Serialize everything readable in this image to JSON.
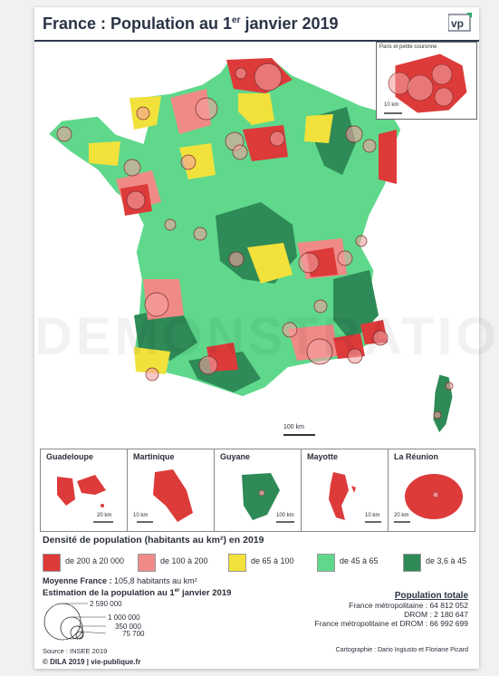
{
  "title": "France : Population au 1er janvier 2019",
  "title_main": "France : Population au 1",
  "title_sup": "er",
  "title_end": " janvier 2019",
  "logo_text": "vp",
  "paris_inset": {
    "label": "Paris et petite couronne",
    "scale": "10 km"
  },
  "watermark": "DEMONSTRATION",
  "main_scale": "100 km",
  "overseas": [
    {
      "name": "Guadeloupe",
      "scale": "20 km"
    },
    {
      "name": "Martinique",
      "scale": "10 km"
    },
    {
      "name": "Guyane",
      "scale": "100 km"
    },
    {
      "name": "Mayotte",
      "scale": "10 km"
    },
    {
      "name": "La Réunion",
      "scale": "20 km"
    }
  ],
  "legend": {
    "title": "Densité de population (habitants au km²) en 2019",
    "classes": [
      {
        "label": "de 200 à 20 000",
        "color": "#dd3a3a"
      },
      {
        "label": "de 100 à 200",
        "color": "#f08a86"
      },
      {
        "label": "de 65 à 100",
        "color": "#f2e13b"
      },
      {
        "label": "de 45 à 65",
        "color": "#5fd88c"
      },
      {
        "label": "de 3,6 à 45",
        "color": "#2e8a57"
      }
    ]
  },
  "moyenne": {
    "label": "Moyenne France :",
    "value": "105,8 habitants au km²"
  },
  "estimation_title": "Estimation de la population au 1",
  "estimation_sup": "er",
  "estimation_end": " janvier 2019",
  "circle_legend": [
    "2 590 000",
    "1 000 000",
    "350 000",
    "75 700"
  ],
  "population": {
    "heading": "Population totale",
    "lines": [
      "France métropolitaine : 64 812 052",
      "DROM : 2 180 647",
      "France métropolitaine et DROM : 66 992 699"
    ]
  },
  "source": "Source : INSEE 2019",
  "cartographie": "Cartographie : Dario Ingiusto et Floriane Picard",
  "footer": "© DILA 2019 | vie-publique.fr"
}
